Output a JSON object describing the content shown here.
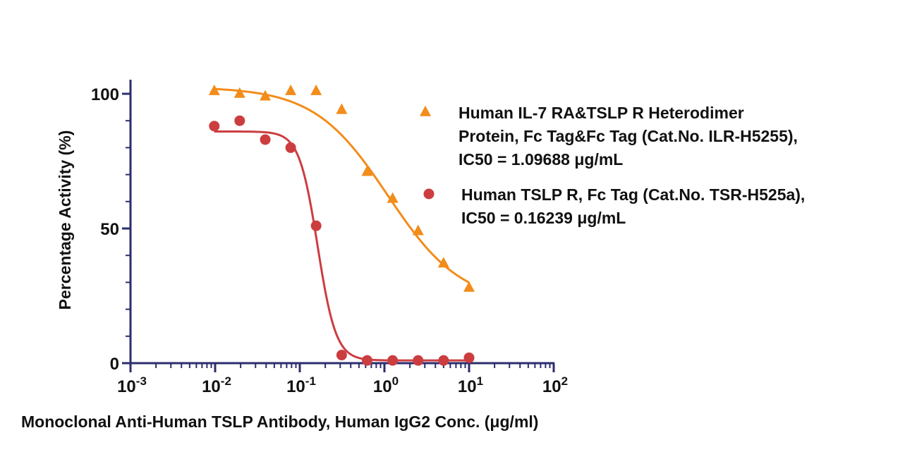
{
  "chart_data": {
    "type": "scatter",
    "title": "",
    "xlabel": "Monoclonal Anti-Human TSLP Antibody, Human IgG2 Conc. (μg/ml)",
    "ylabel": "Percentage Activity (%)",
    "x_scale": "log10",
    "xlim": [
      0.001,
      100
    ],
    "ylim": [
      0,
      100
    ],
    "x_ticks": [
      {
        "base": "10",
        "exp": "-3"
      },
      {
        "base": "10",
        "exp": "-2"
      },
      {
        "base": "10",
        "exp": "-1"
      },
      {
        "base": "10",
        "exp": "0"
      },
      {
        "base": "10",
        "exp": "1"
      },
      {
        "base": "10",
        "exp": "2"
      }
    ],
    "y_ticks": [
      "0",
      "50",
      "100"
    ],
    "legend_position": "right",
    "series": [
      {
        "legend_lines": [
          "Human IL-7 RA&TSLP R Heterodimer",
          "Protein, Fc Tag&Fc Tag (Cat.No. ILR-H5255),",
          "IC50 = 1.09688 μg/mL"
        ],
        "marker": "triangle",
        "color": "#F28C1A",
        "x": [
          0.00977,
          0.0195,
          0.0391,
          0.0781,
          0.156,
          0.3125,
          0.625,
          1.25,
          2.5,
          5.0,
          10.0
        ],
        "y": [
          101,
          100,
          99,
          101,
          101,
          94,
          71,
          61,
          49,
          37,
          28
        ],
        "fit": {
          "top": 102.5,
          "bottom": 22,
          "ic50": 1.09688,
          "hill": 1.0
        }
      },
      {
        "legend_lines": [
          "Human TSLP R, Fc Tag (Cat.No. TSR-H525a),",
          "IC50 = 0.16239 μg/mL"
        ],
        "marker": "circle",
        "color": "#CC3D40",
        "x": [
          0.00977,
          0.0195,
          0.0391,
          0.0781,
          0.156,
          0.3125,
          0.625,
          1.25,
          2.5,
          5.0,
          10.0
        ],
        "y": [
          88,
          90,
          83,
          80,
          51,
          3,
          1,
          1,
          1,
          1,
          2
        ],
        "fit": {
          "top": 86,
          "bottom": 1,
          "ic50": 0.16239,
          "hill": 4.0
        }
      }
    ]
  }
}
